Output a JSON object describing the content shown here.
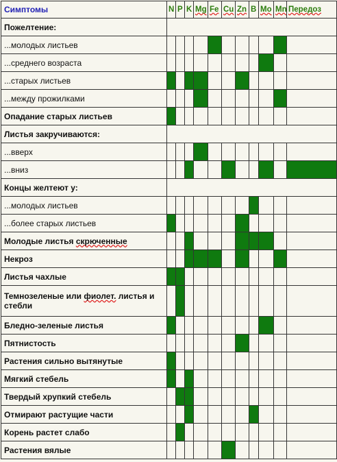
{
  "header": {
    "symptoms": "Симптомы",
    "elements": [
      "N",
      "P",
      "K",
      "Mg",
      "Fe",
      "Cu",
      "Zn",
      "B",
      "Mo",
      "Mn",
      "Передоз"
    ]
  },
  "rows": [
    {
      "label": "Пожелтение:",
      "bold": true,
      "group": true
    },
    {
      "label": "...молодых листьев",
      "bold": false,
      "marks": [
        "Fe",
        "Mn"
      ]
    },
    {
      "label": "...среднего возраста",
      "bold": false,
      "marks": [
        "Mo"
      ]
    },
    {
      "label": "...старых листьев",
      "bold": false,
      "marks": [
        "N",
        "K",
        "Mg",
        "Zn"
      ]
    },
    {
      "label": "...между прожилками",
      "bold": false,
      "marks": [
        "Mg",
        "Mn"
      ]
    },
    {
      "label": "Опадание старых листьев",
      "bold": true,
      "marks": [
        "N"
      ]
    },
    {
      "label": "Листья закручиваются:",
      "bold": true,
      "group": true
    },
    {
      "label": "...вверх",
      "bold": false,
      "marks": [
        "Mg"
      ]
    },
    {
      "label": "...вниз",
      "bold": false,
      "marks": [
        "K",
        "Cu",
        "Mo",
        "Передоз"
      ]
    },
    {
      "label": "Концы желтеют у:",
      "bold": true,
      "group": true
    },
    {
      "label": "...молодых листьев",
      "bold": false,
      "marks": [
        "B"
      ]
    },
    {
      "label": "...более старых листьев",
      "bold": false,
      "marks": [
        "N",
        "Zn"
      ]
    },
    {
      "label": "Молодые листья скрюченные",
      "bold": true,
      "marks": [
        "K",
        "Zn",
        "B",
        "Mo"
      ]
    },
    {
      "label": "Некроз",
      "bold": true,
      "marks": [
        "K",
        "Mg",
        "Fe",
        "Zn",
        "Mn"
      ]
    },
    {
      "label": "Листья чахлые",
      "bold": true,
      "marks": [
        "N",
        "P"
      ]
    },
    {
      "label": "Темнозеленые или фиолет. листья и стебли",
      "bold": true,
      "wrap": true,
      "marks": [
        "P"
      ]
    },
    {
      "label": "Бледно-зеленые листья",
      "bold": true,
      "marks": [
        "N",
        "Mo"
      ]
    },
    {
      "label": "Пятнистость",
      "bold": true,
      "marks": [
        "Zn"
      ]
    },
    {
      "label": "Растения сильно вытянутые",
      "bold": true,
      "marks": [
        "N"
      ]
    },
    {
      "label": "Мягкий стебель",
      "bold": true,
      "marks": [
        "N",
        "K"
      ]
    },
    {
      "label": "Твердый хрупкий стебель",
      "bold": true,
      "marks": [
        "P",
        "K"
      ]
    },
    {
      "label": "Отмирают растущие части",
      "bold": true,
      "marks": [
        "K",
        "B"
      ]
    },
    {
      "label": "Корень растет слабо",
      "bold": true,
      "marks": [
        "P"
      ]
    },
    {
      "label": "Растения вялые",
      "bold": true,
      "marks": [
        "Cu"
      ]
    }
  ],
  "colors": {
    "mark": "#0f7a0f",
    "background": "#f7f6ee",
    "symptom_header": "#1f1fb4",
    "element_header": "#2d7d0f"
  }
}
